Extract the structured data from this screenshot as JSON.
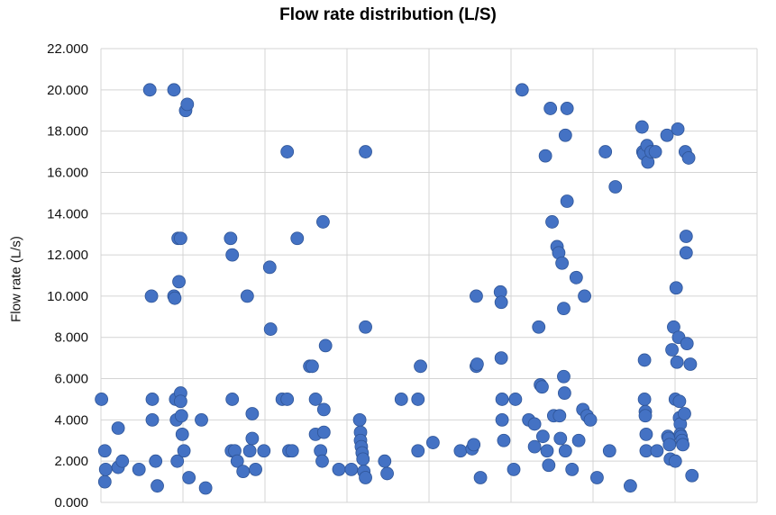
{
  "chart_data": {
    "type": "scatter",
    "title": "Flow rate distribution (L/S)",
    "ylabel": "Flow rate (L/s)",
    "xlabel": "",
    "ylim": [
      0,
      22
    ],
    "yticks": [
      "0.000",
      "2.000",
      "4.000",
      "6.000",
      "8.000",
      "10.000",
      "12.000",
      "14.000",
      "16.000",
      "18.000",
      "20.000",
      "22.000"
    ],
    "xlim": [
      0,
      790
    ],
    "grid": true,
    "marker_color": "#4472C4",
    "points": [
      [
        5,
        5.0
      ],
      [
        9,
        2.5
      ],
      [
        9,
        1.0
      ],
      [
        10,
        1.6
      ],
      [
        25,
        3.6
      ],
      [
        25,
        1.7
      ],
      [
        30,
        2.0
      ],
      [
        50,
        1.6
      ],
      [
        63,
        20.0
      ],
      [
        65,
        10.0
      ],
      [
        66,
        5.0
      ],
      [
        66,
        4.0
      ],
      [
        70,
        2.0
      ],
      [
        72,
        0.8
      ],
      [
        92,
        20.0
      ],
      [
        92,
        10.0
      ],
      [
        93,
        9.9
      ],
      [
        94,
        5.0
      ],
      [
        95,
        4.0
      ],
      [
        96,
        2.0
      ],
      [
        97,
        12.8
      ],
      [
        100,
        12.8
      ],
      [
        98,
        10.7
      ],
      [
        100,
        5.3
      ],
      [
        100,
        4.9
      ],
      [
        101,
        4.2
      ],
      [
        102,
        3.3
      ],
      [
        104,
        2.5
      ],
      [
        106,
        19.0
      ],
      [
        108,
        19.3
      ],
      [
        110,
        1.2
      ],
      [
        125,
        4.0
      ],
      [
        130,
        0.7
      ],
      [
        160,
        12.8
      ],
      [
        161,
        2.5
      ],
      [
        162,
        12.0
      ],
      [
        162,
        5.0
      ],
      [
        165,
        2.5
      ],
      [
        168,
        2.0
      ],
      [
        175,
        1.5
      ],
      [
        180,
        10.0
      ],
      [
        183,
        2.5
      ],
      [
        186,
        4.3
      ],
      [
        186,
        3.1
      ],
      [
        190,
        1.6
      ],
      [
        200,
        2.5
      ],
      [
        207,
        11.4
      ],
      [
        208,
        8.4
      ],
      [
        222,
        5.0
      ],
      [
        228,
        5.0
      ],
      [
        230,
        2.5
      ],
      [
        228,
        17.0
      ],
      [
        234,
        2.5
      ],
      [
        240,
        12.8
      ],
      [
        255,
        6.6
      ],
      [
        258,
        6.6
      ],
      [
        262,
        5.0
      ],
      [
        262,
        3.3
      ],
      [
        268,
        2.5
      ],
      [
        270,
        2.0
      ],
      [
        271,
        13.6
      ],
      [
        272,
        4.5
      ],
      [
        272,
        3.4
      ],
      [
        274,
        7.6
      ],
      [
        290,
        1.6
      ],
      [
        305,
        1.6
      ],
      [
        315,
        4.0
      ],
      [
        316,
        3.4
      ],
      [
        316,
        3.0
      ],
      [
        317,
        2.7
      ],
      [
        318,
        2.4
      ],
      [
        319,
        2.1
      ],
      [
        320,
        1.5
      ],
      [
        322,
        17.0
      ],
      [
        322,
        8.5
      ],
      [
        322,
        1.2
      ],
      [
        345,
        2.0
      ],
      [
        348,
        1.4
      ],
      [
        365,
        5.0
      ],
      [
        385,
        5.0
      ],
      [
        385,
        2.5
      ],
      [
        388,
        6.6
      ],
      [
        403,
        2.9
      ],
      [
        436,
        2.5
      ],
      [
        450,
        2.6
      ],
      [
        452,
        2.8
      ],
      [
        455,
        10.0
      ],
      [
        455,
        6.6
      ],
      [
        456,
        6.7
      ],
      [
        460,
        1.2
      ],
      [
        484,
        10.2
      ],
      [
        485,
        9.7
      ],
      [
        485,
        7.0
      ],
      [
        486,
        5.0
      ],
      [
        486,
        4.0
      ],
      [
        488,
        3.0
      ],
      [
        502,
        5.0
      ],
      [
        500,
        1.6
      ],
      [
        510,
        20.0
      ],
      [
        518,
        4.0
      ],
      [
        525,
        3.8
      ],
      [
        525,
        2.7
      ],
      [
        530,
        8.5
      ],
      [
        532,
        5.7
      ],
      [
        534,
        5.6
      ],
      [
        535,
        3.2
      ],
      [
        538,
        16.8
      ],
      [
        540,
        2.5
      ],
      [
        542,
        1.8
      ],
      [
        544,
        19.1
      ],
      [
        546,
        13.6
      ],
      [
        548,
        4.2
      ],
      [
        552,
        12.4
      ],
      [
        554,
        12.1
      ],
      [
        555,
        4.2
      ],
      [
        556,
        3.1
      ],
      [
        558,
        11.6
      ],
      [
        560,
        9.4
      ],
      [
        560,
        6.1
      ],
      [
        561,
        5.3
      ],
      [
        562,
        2.5
      ],
      [
        562,
        17.8
      ],
      [
        564,
        14.6
      ],
      [
        564,
        19.1
      ],
      [
        570,
        1.6
      ],
      [
        575,
        10.9
      ],
      [
        578,
        3.0
      ],
      [
        583,
        4.5
      ],
      [
        585,
        10.0
      ],
      [
        588,
        4.2
      ],
      [
        592,
        4.0
      ],
      [
        600,
        1.2
      ],
      [
        610,
        17.0
      ],
      [
        615,
        2.5
      ],
      [
        622,
        15.3
      ],
      [
        640,
        0.8
      ],
      [
        654,
        18.2
      ],
      [
        655,
        17.0
      ],
      [
        656,
        16.9
      ],
      [
        657,
        6.9
      ],
      [
        657,
        5.0
      ],
      [
        658,
        4.4
      ],
      [
        658,
        4.2
      ],
      [
        659,
        3.3
      ],
      [
        659,
        2.5
      ],
      [
        660,
        17.3
      ],
      [
        661,
        16.5
      ],
      [
        665,
        17.0
      ],
      [
        670,
        17.0
      ],
      [
        672,
        2.5
      ],
      [
        684,
        17.8
      ],
      [
        685,
        3.2
      ],
      [
        686,
        3.1
      ],
      [
        687,
        2.8
      ],
      [
        688,
        2.1
      ],
      [
        690,
        7.4
      ],
      [
        692,
        8.5
      ],
      [
        694,
        5.0
      ],
      [
        694,
        2.0
      ],
      [
        695,
        10.4
      ],
      [
        696,
        6.8
      ],
      [
        697,
        18.1
      ],
      [
        698,
        8.0
      ],
      [
        699,
        4.9
      ],
      [
        699,
        4.1
      ],
      [
        700,
        3.8
      ],
      [
        700,
        3.3
      ],
      [
        701,
        3.2
      ],
      [
        702,
        3.0
      ],
      [
        703,
        2.8
      ],
      [
        705,
        4.3
      ],
      [
        706,
        17.0
      ],
      [
        707,
        12.9
      ],
      [
        707,
        12.1
      ],
      [
        708,
        7.7
      ],
      [
        710,
        16.7
      ],
      [
        712,
        6.7
      ],
      [
        714,
        1.3
      ]
    ]
  }
}
